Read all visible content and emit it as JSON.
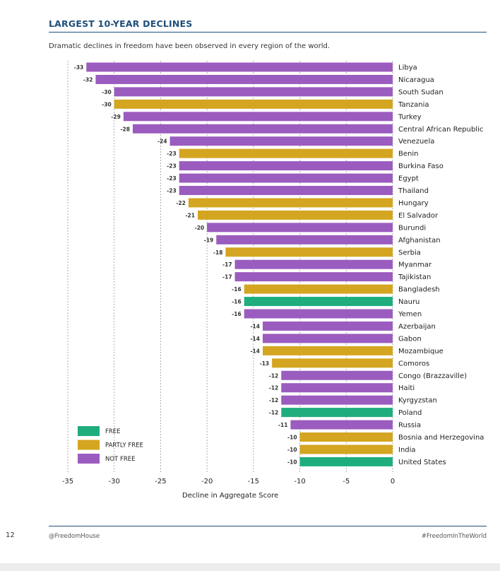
{
  "header": {
    "title": "LARGEST 10-YEAR DECLINES",
    "subtitle": "Dramatic declines in freedom have been observed in every region of the world."
  },
  "footer": {
    "page_number": "12",
    "handle": "@FreedomHouse",
    "hashtag": "#FreedomInTheWorld"
  },
  "colors": {
    "FREE": "#1fad7e",
    "PARTLY FREE": "#d4a520",
    "NOT FREE": "#9b5cbf",
    "accent": "#1f4f7a"
  },
  "chart_data": {
    "type": "bar",
    "orientation": "horizontal",
    "title": "LARGEST 10-YEAR DECLINES",
    "xlabel": "Decline in Aggregate Score",
    "ylabel": "",
    "xlim": [
      -35,
      0
    ],
    "xticks": [
      -35,
      -30,
      -25,
      -20,
      -15,
      -10,
      -5,
      0
    ],
    "grid": "vertical dashed",
    "legend": {
      "placement": "bottom-left",
      "entries": [
        "FREE",
        "PARTLY FREE",
        "NOT FREE"
      ]
    },
    "categories": [
      "Libya",
      "Nicaragua",
      "South Sudan",
      "Tanzania",
      "Turkey",
      "Central African Republic",
      "Venezuela",
      "Benin",
      "Burkina Faso",
      "Egypt",
      "Thailand",
      "Hungary",
      "El Salvador",
      "Burundi",
      "Afghanistan",
      "Serbia",
      "Myanmar",
      "Tajikistan",
      "Bangladesh",
      "Nauru",
      "Yemen",
      "Azerbaijan",
      "Gabon",
      "Mozambique",
      "Comoros",
      "Congo (Brazzaville)",
      "Haiti",
      "Kyrgyzstan",
      "Poland",
      "Russia",
      "Bosnia and Herzegovina",
      "India",
      "United States"
    ],
    "values": [
      -33,
      -32,
      -30,
      -30,
      -29,
      -28,
      -24,
      -23,
      -23,
      -23,
      -23,
      -22,
      -21,
      -20,
      -19,
      -18,
      -17,
      -17,
      -16,
      -16,
      -16,
      -14,
      -14,
      -14,
      -13,
      -12,
      -12,
      -12,
      -12,
      -11,
      -10,
      -10,
      -10
    ],
    "status": [
      "NOT FREE",
      "NOT FREE",
      "NOT FREE",
      "PARTLY FREE",
      "NOT FREE",
      "NOT FREE",
      "NOT FREE",
      "PARTLY FREE",
      "NOT FREE",
      "NOT FREE",
      "NOT FREE",
      "PARTLY FREE",
      "PARTLY FREE",
      "NOT FREE",
      "NOT FREE",
      "PARTLY FREE",
      "NOT FREE",
      "NOT FREE",
      "PARTLY FREE",
      "FREE",
      "NOT FREE",
      "NOT FREE",
      "NOT FREE",
      "PARTLY FREE",
      "PARTLY FREE",
      "NOT FREE",
      "NOT FREE",
      "NOT FREE",
      "FREE",
      "NOT FREE",
      "PARTLY FREE",
      "PARTLY FREE",
      "FREE"
    ]
  }
}
